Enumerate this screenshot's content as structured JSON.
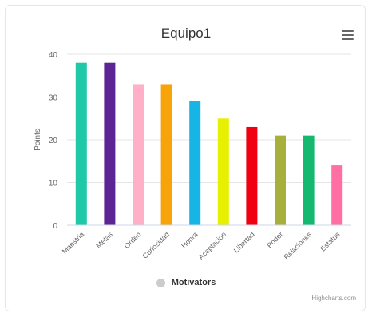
{
  "chart_data": {
    "type": "bar",
    "title": "Equipo1",
    "ylabel": "Points",
    "xlabel": "",
    "categories": [
      "Maestria",
      "Metas",
      "Orden",
      "Curiosidad",
      "Honra",
      "Aceptacion",
      "Libertad",
      "Poder",
      "Relaciones",
      "Estatus"
    ],
    "values": [
      38,
      38,
      33,
      33,
      29,
      25,
      23,
      21,
      21,
      14
    ],
    "colors": [
      "#1fc9a8",
      "#5c2594",
      "#ffb0c8",
      "#f7a30a",
      "#18b4e6",
      "#e6f000",
      "#f00011",
      "#a6b03a",
      "#14b86e",
      "#ff6fa3"
    ],
    "ylim": [
      0,
      40
    ],
    "yticks": [
      0,
      10,
      20,
      30,
      40
    ],
    "grid": true,
    "legend": {
      "position": "bottom",
      "label": "Motivators",
      "color": "#cccccc"
    },
    "credits": "Highcharts.com"
  },
  "icons": {
    "menu": "hamburger-menu-icon"
  }
}
